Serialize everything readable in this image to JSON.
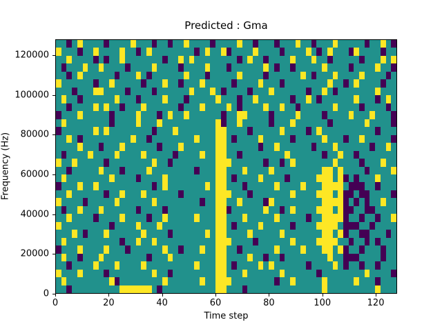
{
  "chart_data": {
    "type": "heatmap",
    "title": "Predicted : Gma",
    "xlabel": "Time step",
    "ylabel": "Frequency (Hz)",
    "x_range": [
      0,
      128
    ],
    "y_range": [
      0,
      128000
    ],
    "x_ticks": [
      0,
      20,
      40,
      60,
      80,
      100,
      120
    ],
    "y_ticks": [
      0,
      20000,
      40000,
      60000,
      80000,
      100000,
      120000
    ],
    "colormap": "viridis",
    "value_colors": {
      "low": "#440154",
      "mid": "#21918c",
      "high": "#fde725"
    },
    "grid": {
      "cols": 64,
      "rows": 32,
      "encoding": "rows listed top (128000 Hz) to bottom (0 Hz); '.'=background/mid, 'Y'=high/yellow, 'P'=low/purple"
    },
    "cells": [
      "..P.Y....P....Y...P..P..Y....P....Y..P...P...Y..P...Y.....P..Y.P",
      "Y...P..Y....Y..P.Y........P.Y..YP....Y....P....Y.P.Y...PY....P..",
      "..Y....P.P..Y.......P..Y.Y........P.Y..P....Y...Y..P.....P...Y.Y",
      ".P...Y..Y....P....Y....P....Y...P......Y.P..P.....Y....P....Y..P",
      "..P.Y......P...Y.P......Y...P.....Y....P......Y.P...Y....Y....P.",
      "Y......P..Y.....P...Y..P...Y.....P....Y...P........Y..P.Y....P..",
      "...P...YY....P....P......Y...Y.P....P...Y......P..Y.P.......Y...",
      ".Y..P......Y...P....Y...P.....Y...P..Y......P..Y.P......Y...P.Y.",
      "..P....Y.Y..P...Y......P...Y....Y.P....Y..Y..P......Y....P....P.",
      "P...Y.....P....Y...P.Y..Y......P..YY....P....Y....P....Y...Y...P",
      ".Y........P....Y...Y..........YP..Y.....P...Y......P......Y....P",
      "P......Y.Y........P...Y.......YY....P.....Y....P.Y..........P...",
      "..Y.P.........Y..P........Y...YY.P....Y.....P.....Y...P..Y.....P",
      "....Y...P...Y......P...Y......YY......P..Y......P...Y......P..Y.",
      ".P....Y....Y....Y.....P....Y..YY..P........Y......P..Y..P.......",
      "Y..Y.....P........Y..P........YYY......P..P.Y.......Y....P...Y..",
      "..P.....Y...P....Y........P...YY...Y....Y.........YY.Y....P....Y",
      ".Y........Y....P....Y.........YY.P....Y....P.....YYY.YP.P...Y...",
      "P...Y..Y..........P.Y.......Y.YY...P.....Y....Y...YYYY.PPP..P...",
      "..Y......P..Y...Y......P......YYY...P.......Y....YYY.YPP.PP....P",
      "Y....P.....Y......Y........P..YY..Y....PY.........YYYYP.P.P..Y..",
      ".P..Y...Y......P....P.........YYP......Y..P.Y....YYY.YPP..PP....",
      "..Y....P....Y....P..Y.....Y...YY...Y.....Y.....P..YYYYP..P..P..Y",
      "Y.........P....Y...Y..........YY.P....Y.....P....YYYY.PPP..P....",
      "...Y.P...Y......Y....P......Y.YY....Y.....Y.......YY.YP..PP...P.",
      ".Y..........P..Y..Y...........YYY....P......Y....YYYY..P..P.P...",
      "P...Y....Y...P......Y..P...Y..YY..P......Y....Y...YY.YP..P...P..",
      ".Y..P...Y........P...Y........YY....Y..P..P........Y..PPP....P..",
      "..P....Y...Y....Y.........Y...YY.P....Y.Y......P....Y.P..P..P...",
      "Y...Y....P........Y..P........YY...Y......Y......P........Y....P",
      ".Y........YP........Y......Y..YYY........P..Y.....Y.....Y...P...",
      "..P.........YYYYYY.P..........YY...P..............Y.........Y..."
    ]
  }
}
